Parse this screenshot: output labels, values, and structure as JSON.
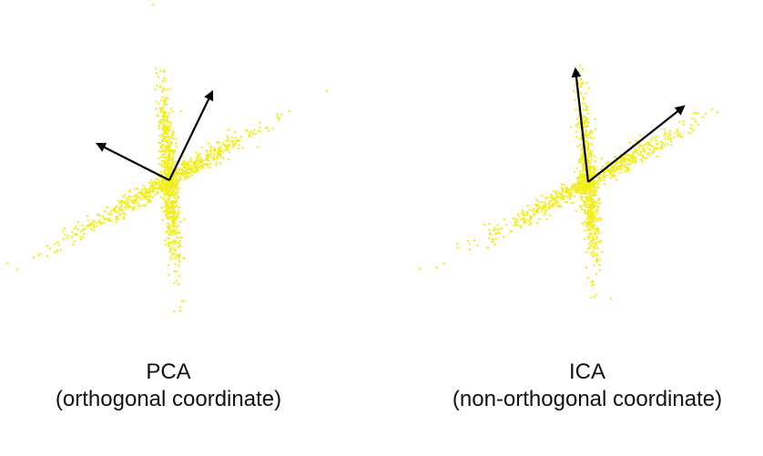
{
  "colors": {
    "points": "#f2ee1a",
    "arrows": "#000000",
    "text": "#111111"
  },
  "panels": [
    {
      "id": "pca",
      "title": "PCA",
      "subtitle": "(orthogonal coordinate)",
      "arrow_icons": [
        "arrow-icon",
        "arrow-icon"
      ]
    },
    {
      "id": "ica",
      "title": "ICA",
      "subtitle": "(non-orthogonal coordinate)",
      "arrow_icons": [
        "arrow-icon",
        "arrow-icon"
      ]
    }
  ]
}
